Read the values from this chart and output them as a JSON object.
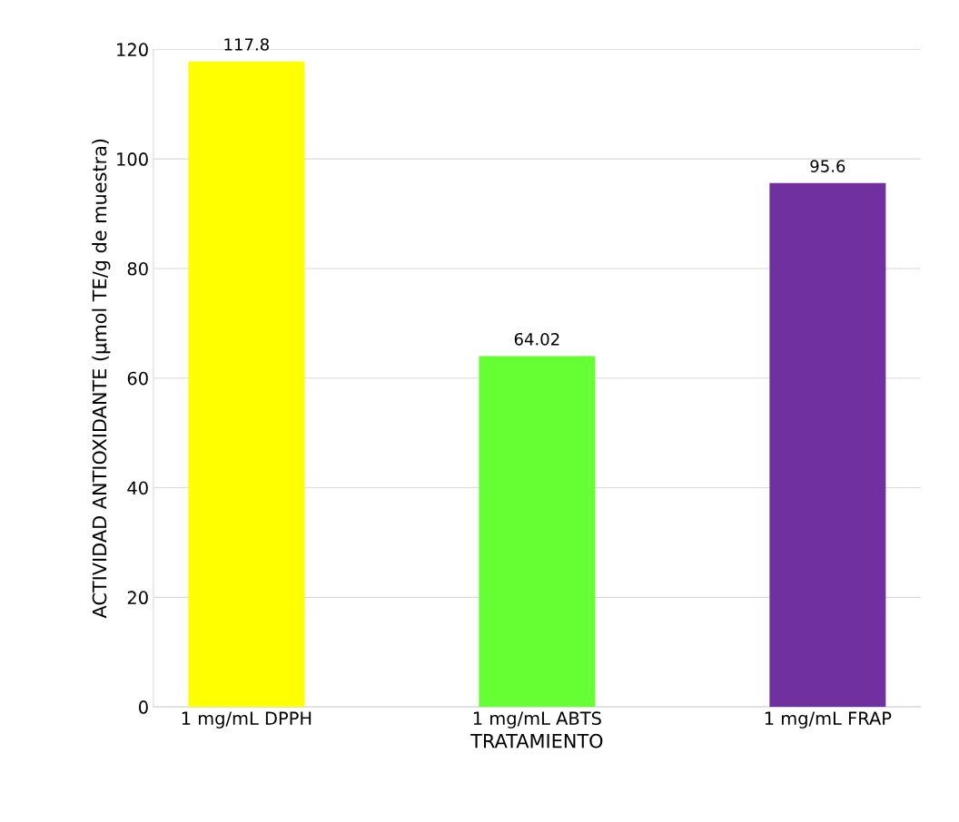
{
  "chart_data": {
    "type": "bar",
    "xlabel": "TRATAMIENTO",
    "ylabel": "ACTIVIDAD ANTIOXIDANTE (µmol TE/g de muestra)",
    "categories": [
      "1 mg/mL DPPH",
      "1 mg/mL ABTS",
      "1 mg/mL FRAP"
    ],
    "values": [
      117.8,
      64.02,
      95.6
    ],
    "colors": [
      "#ffff00",
      "#66ff33",
      "#7030a0"
    ],
    "ylim": [
      0,
      120
    ],
    "yticks": [
      0,
      20,
      40,
      60,
      80,
      100,
      120
    ],
    "grid": "y",
    "data_labels": true
  }
}
